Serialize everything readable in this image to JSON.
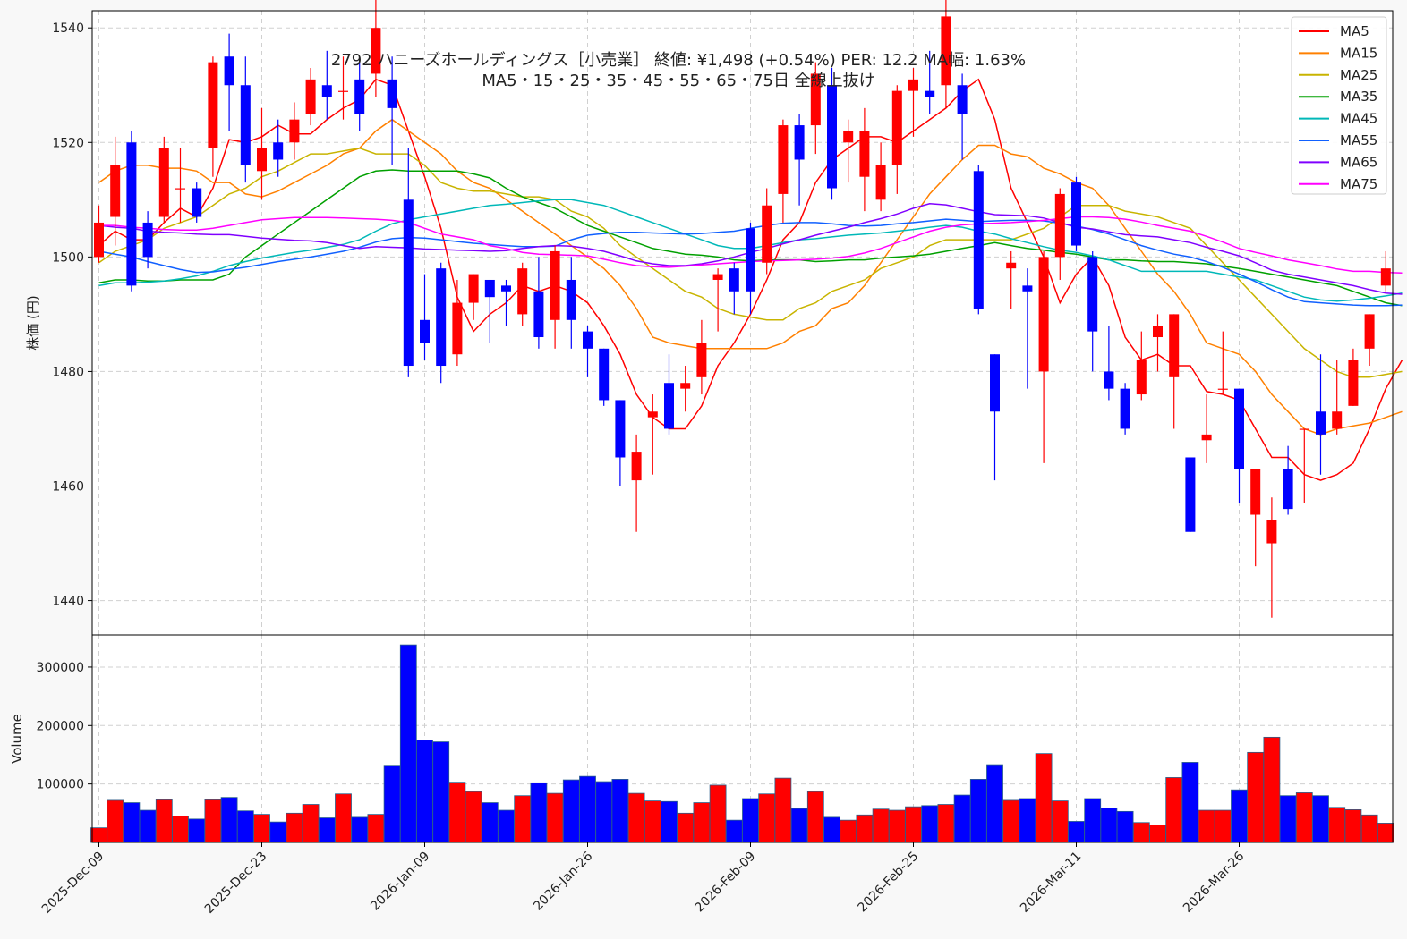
{
  "chart_data": {
    "type": "candlestick",
    "title_line1": "2792 ハニーズホールディングス［小売業］ 終値: ¥1,498 (+0.54%) PER: 12.2 MA幅: 1.63%",
    "title_line2": "MA5・15・25・35・45・55・65・75日 全線上抜け",
    "ylabel": "株価 (円)",
    "volume_label": "Volume",
    "ylim": [
      1434,
      1543
    ],
    "yticks": [
      1440,
      1460,
      1480,
      1500,
      1520,
      1540
    ],
    "volume_ylim": [
      0,
      355000
    ],
    "volume_ticks": [
      100000,
      200000,
      300000
    ],
    "legend_position": "top-right",
    "grid": true,
    "date_labels": [
      {
        "index": 0,
        "label": "2025-Dec-09"
      },
      {
        "index": 10,
        "label": "2025-Dec-23"
      },
      {
        "index": 20,
        "label": "2026-Jan-09"
      },
      {
        "index": 30,
        "label": "2026-Jan-26"
      },
      {
        "index": 40,
        "label": "2026-Feb-09"
      },
      {
        "index": 50,
        "label": "2026-Feb-25"
      },
      {
        "index": 60,
        "label": "2026-Mar-11"
      },
      {
        "index": 70,
        "label": "2026-Mar-26"
      }
    ],
    "candles": [
      [
        1500,
        1506,
        1499,
        1509,
        25000
      ],
      [
        1507,
        1516,
        1502,
        1521,
        72000
      ],
      [
        1520,
        1495,
        1494,
        1522,
        68000
      ],
      [
        1506,
        1500,
        1498,
        1508,
        55000
      ],
      [
        1507,
        1519,
        1506,
        1521,
        73000
      ],
      [
        1512,
        1512,
        1506,
        1519,
        45000
      ],
      [
        1512,
        1507,
        1506,
        1513,
        40000
      ],
      [
        1519,
        1534,
        1514,
        1535,
        73000
      ],
      [
        1535,
        1530,
        1522,
        1539,
        77000
      ],
      [
        1530,
        1516,
        1513,
        1535,
        54000
      ],
      [
        1515,
        1519,
        1510,
        1526,
        48000
      ],
      [
        1520,
        1517,
        1514,
        1524,
        35000
      ],
      [
        1520,
        1524,
        1517,
        1527,
        50000
      ],
      [
        1525,
        1531,
        1523,
        1533,
        65000
      ],
      [
        1530,
        1528,
        1524,
        1536,
        42000
      ],
      [
        1529,
        1529,
        1524,
        1535,
        83000
      ],
      [
        1531,
        1525,
        1522,
        1535,
        43000
      ],
      [
        1532,
        1540,
        1528,
        1545,
        48000
      ],
      [
        1531,
        1526,
        1516,
        1535,
        132000
      ],
      [
        1510,
        1481,
        1479,
        1519,
        338000
      ],
      [
        1489,
        1485,
        1482,
        1497,
        175000
      ],
      [
        1498,
        1481,
        1478,
        1499,
        172000
      ],
      [
        1483,
        1492,
        1481,
        1496,
        103000
      ],
      [
        1492,
        1497,
        1489,
        1497,
        87000
      ],
      [
        1496,
        1493,
        1485,
        1496,
        68000
      ],
      [
        1495,
        1494,
        1488,
        1496,
        55000
      ],
      [
        1490,
        1498,
        1488,
        1499,
        80000
      ],
      [
        1494,
        1486,
        1484,
        1500,
        102000
      ],
      [
        1489,
        1501,
        1484,
        1502,
        84000
      ],
      [
        1496,
        1489,
        1484,
        1500,
        107000
      ],
      [
        1487,
        1484,
        1479,
        1488,
        113000
      ],
      [
        1484,
        1475,
        1474,
        1484,
        104000
      ],
      [
        1475,
        1465,
        1460,
        1475,
        108000
      ],
      [
        1461,
        1466,
        1452,
        1469,
        84000
      ],
      [
        1472,
        1473,
        1462,
        1476,
        71000
      ],
      [
        1478,
        1470,
        1469,
        1483,
        70000
      ],
      [
        1477,
        1478,
        1473,
        1481,
        50000
      ],
      [
        1479,
        1485,
        1476,
        1489,
        68000
      ],
      [
        1496,
        1497,
        1487,
        1498,
        98000
      ],
      [
        1498,
        1494,
        1490,
        1499,
        38000
      ],
      [
        1505,
        1494,
        1490,
        1506,
        75000
      ],
      [
        1499,
        1509,
        1497,
        1512,
        83000
      ],
      [
        1511,
        1523,
        1506,
        1524,
        110000
      ],
      [
        1523,
        1517,
        1509,
        1525,
        58000
      ],
      [
        1523,
        1532,
        1518,
        1534,
        87000
      ],
      [
        1530,
        1512,
        1510,
        1533,
        43000
      ],
      [
        1520,
        1522,
        1513,
        1524,
        38000
      ],
      [
        1514,
        1522,
        1508,
        1526,
        47000
      ],
      [
        1510,
        1516,
        1508,
        1520,
        57000
      ],
      [
        1516,
        1529,
        1511,
        1530,
        55000
      ],
      [
        1529,
        1531,
        1521,
        1533,
        61000
      ],
      [
        1529,
        1528,
        1525,
        1536,
        63000
      ],
      [
        1530,
        1542,
        1526,
        1545,
        65000
      ],
      [
        1530,
        1525,
        1517,
        1532,
        81000
      ],
      [
        1515,
        1491,
        1490,
        1516,
        108000
      ],
      [
        1483,
        1473,
        1461,
        1483,
        133000
      ],
      [
        1498,
        1499,
        1491,
        1501,
        72000
      ],
      [
        1495,
        1494,
        1477,
        1498,
        75000
      ],
      [
        1480,
        1500,
        1464,
        1501,
        152000
      ],
      [
        1500,
        1511,
        1496,
        1512,
        71000
      ],
      [
        1513,
        1502,
        1501,
        1514,
        36000
      ],
      [
        1500,
        1487,
        1480,
        1501,
        75000
      ],
      [
        1480,
        1477,
        1475,
        1488,
        59000
      ],
      [
        1477,
        1470,
        1469,
        1478,
        53000
      ],
      [
        1476,
        1482,
        1475,
        1487,
        34000
      ],
      [
        1486,
        1488,
        1480,
        1490,
        30000
      ],
      [
        1479,
        1490,
        1470,
        1490,
        111000
      ],
      [
        1465,
        1452,
        1452,
        1465,
        137000
      ],
      [
        1468,
        1469,
        1464,
        1476,
        55000
      ],
      [
        1477,
        1477,
        1476,
        1487,
        55000
      ],
      [
        1477,
        1463,
        1457,
        1477,
        90000
      ],
      [
        1455,
        1463,
        1446,
        1463,
        154000
      ],
      [
        1450,
        1454,
        1437,
        1458,
        180000
      ],
      [
        1463,
        1456,
        1455,
        1467,
        80000
      ],
      [
        1470,
        1470,
        1457,
        1470,
        85000
      ],
      [
        1473,
        1469,
        1462,
        1483,
        80000
      ],
      [
        1470,
        1473,
        1469,
        1482,
        60000
      ],
      [
        1474,
        1482,
        1474,
        1484,
        56000
      ],
      [
        1484,
        1490,
        1481,
        1490,
        47000
      ],
      [
        1495,
        1498,
        1494,
        1501,
        33000
      ]
    ],
    "series": [
      {
        "name": "MA5",
        "color": "#ff0000",
        "values": [
          1502,
          1504.5,
          1503,
          1503,
          1506,
          1508.5,
          1507,
          1512,
          1520.5,
          1520,
          1521,
          1523,
          1521.5,
          1521.5,
          1524,
          1526,
          1527.5,
          1531,
          1530,
          1522,
          1514,
          1505,
          1493,
          1487,
          1490,
          1492,
          1495,
          1494,
          1495,
          1494,
          1492,
          1488,
          1483,
          1476,
          1472,
          1470,
          1470,
          1474,
          1481,
          1485,
          1490,
          1496,
          1503,
          1506,
          1513,
          1517,
          1519,
          1521,
          1521,
          1520,
          1522,
          1524,
          1526,
          1529,
          1531,
          1524,
          1512,
          1506,
          1500,
          1492,
          1497,
          1500,
          1495,
          1486,
          1482,
          1483,
          1481,
          1481,
          1476.5,
          1476,
          1475,
          1470,
          1465,
          1465,
          1462,
          1461,
          1462,
          1464,
          1470,
          1477,
          1482
        ]
      },
      {
        "name": "MA15",
        "color": "#ff8000",
        "values": [
          1513,
          1515,
          1516,
          1516,
          1515.5,
          1515.5,
          1515,
          1513,
          1513,
          1511,
          1510.5,
          1511.5,
          1513,
          1514.5,
          1516,
          1518,
          1519,
          1522,
          1524,
          1522,
          1520,
          1518,
          1515,
          1513,
          1512,
          1510,
          1508,
          1506,
          1504,
          1502,
          1500,
          1498,
          1495,
          1491,
          1486,
          1485,
          1484.5,
          1484,
          1484,
          1484,
          1484,
          1484,
          1485,
          1487,
          1488,
          1491,
          1492,
          1495,
          1499,
          1503,
          1507,
          1511,
          1514,
          1517,
          1519.5,
          1519.5,
          1518,
          1517.5,
          1515.5,
          1514.5,
          1513,
          1512,
          1509,
          1505,
          1501,
          1497,
          1494,
          1490,
          1485,
          1484,
          1483,
          1480,
          1476,
          1473,
          1470,
          1469,
          1470,
          1470.5,
          1471,
          1472,
          1473
        ]
      },
      {
        "name": "MA25",
        "color": "#c8b400",
        "values": [
          1499,
          1501,
          1502,
          1503,
          1505,
          1506,
          1507,
          1509,
          1511,
          1512,
          1514,
          1515,
          1516.5,
          1518,
          1518,
          1518.5,
          1519,
          1518,
          1518,
          1518,
          1516,
          1513,
          1512,
          1511.5,
          1511.5,
          1511,
          1510.5,
          1510.5,
          1510,
          1508,
          1507,
          1505,
          1502,
          1500,
          1498,
          1496,
          1494,
          1493,
          1491,
          1490,
          1489.5,
          1489,
          1489,
          1491,
          1492,
          1494,
          1495,
          1496,
          1498,
          1499,
          1500,
          1502,
          1503,
          1503,
          1503,
          1503,
          1503,
          1504,
          1505,
          1507,
          1509,
          1509,
          1509,
          1508,
          1507.5,
          1507,
          1506,
          1505,
          1502,
          1499,
          1496,
          1493,
          1490,
          1487,
          1484,
          1482,
          1480,
          1479,
          1479,
          1479.5,
          1480
        ]
      },
      {
        "name": "MA35",
        "color": "#00a000",
        "values": [
          1495.5,
          1496,
          1496,
          1495.8,
          1495.8,
          1496,
          1496,
          1496,
          1497,
          1500,
          1502,
          1504,
          1506,
          1508,
          1510,
          1512,
          1514,
          1515,
          1515.2,
          1515,
          1515,
          1515,
          1515,
          1514.5,
          1513.8,
          1512,
          1510.5,
          1509.5,
          1508.5,
          1507,
          1505.5,
          1504.5,
          1503.5,
          1502.5,
          1501.5,
          1501,
          1500.5,
          1500.3,
          1500,
          1499.5,
          1499.3,
          1499.5,
          1499.5,
          1499.5,
          1499.2,
          1499.3,
          1499.5,
          1499.5,
          1499.8,
          1500,
          1500.2,
          1500.5,
          1501,
          1501.5,
          1502,
          1502.5,
          1502,
          1501.5,
          1501.2,
          1500.8,
          1500.5,
          1500,
          1499.5,
          1499.5,
          1499.3,
          1499.2,
          1499.2,
          1499,
          1498.8,
          1498.4,
          1498,
          1497.5,
          1497,
          1496.5,
          1496,
          1495.5,
          1495,
          1494,
          1493,
          1492,
          1491.5
        ]
      },
      {
        "name": "MA45",
        "color": "#00b8b8",
        "values": [
          1495,
          1495.5,
          1495.5,
          1495.6,
          1495.8,
          1496.2,
          1496.7,
          1497.5,
          1498.5,
          1499.2,
          1499.8,
          1500.3,
          1500.8,
          1501.2,
          1501.7,
          1502.2,
          1503,
          1504.5,
          1505.8,
          1506.5,
          1507,
          1507.5,
          1508,
          1508.5,
          1509,
          1509.2,
          1509.5,
          1509.8,
          1510,
          1510,
          1509.5,
          1509,
          1508,
          1507,
          1506,
          1505,
          1504,
          1503,
          1502,
          1501.5,
          1501.5,
          1502,
          1502.5,
          1503,
          1503.2,
          1503.5,
          1503.8,
          1504,
          1504.2,
          1504.5,
          1504.8,
          1505.2,
          1505.5,
          1505.2,
          1504.5,
          1504,
          1503.2,
          1502.5,
          1501.8,
          1501.2,
          1500.8,
          1500.2,
          1499.5,
          1498.5,
          1497.5,
          1497.5,
          1497.5,
          1497.5,
          1497.5,
          1497,
          1496.5,
          1496,
          1495,
          1494,
          1493,
          1492.5,
          1492.3,
          1492.5,
          1492.8,
          1493.2,
          1493.7
        ]
      },
      {
        "name": "MA55",
        "color": "#1060ff",
        "values": [
          1501,
          1500.5,
          1500,
          1499.2,
          1498.5,
          1497.8,
          1497.3,
          1497.4,
          1497.8,
          1498.2,
          1498.7,
          1499.2,
          1499.6,
          1500,
          1500.5,
          1501,
          1501.7,
          1502.6,
          1503.2,
          1503.4,
          1503.3,
          1503,
          1502.7,
          1502.4,
          1502.2,
          1502,
          1501.8,
          1501.8,
          1501.9,
          1503,
          1503.8,
          1504.1,
          1504.3,
          1504.3,
          1504.2,
          1504.1,
          1504,
          1504.1,
          1504.3,
          1504.5,
          1505,
          1505.5,
          1505.9,
          1506,
          1506,
          1505.8,
          1505.5,
          1505.4,
          1505.5,
          1505.8,
          1506,
          1506.3,
          1506.6,
          1506.4,
          1506.2,
          1506.3,
          1506.4,
          1506.4,
          1506.3,
          1505.9,
          1505.4,
          1504.8,
          1504,
          1503,
          1502,
          1501.2,
          1500.5,
          1500,
          1499.2,
          1498.2,
          1497,
          1495.7,
          1494.3,
          1493,
          1492.2,
          1492,
          1491.8,
          1491.6,
          1491.5,
          1491.5,
          1491.6
        ]
      },
      {
        "name": "MA65",
        "color": "#8000ff",
        "values": [
          1505.5,
          1505.2,
          1505,
          1504.5,
          1504.3,
          1504.2,
          1504,
          1503.9,
          1503.9,
          1503.6,
          1503.3,
          1503.1,
          1502.9,
          1502.8,
          1502.5,
          1502,
          1501.5,
          1501.8,
          1501.7,
          1501.6,
          1501.4,
          1501.3,
          1501.2,
          1501.1,
          1501,
          1501.1,
          1501.5,
          1501.8,
          1502,
          1501.9,
          1501.5,
          1501,
          1500.2,
          1499.3,
          1498.8,
          1498.5,
          1498.5,
          1498.8,
          1499.3,
          1500,
          1500.8,
          1501.5,
          1502.3,
          1503,
          1503.8,
          1504.5,
          1505.2,
          1506,
          1506.7,
          1507.5,
          1508.5,
          1509.3,
          1509.1,
          1508.5,
          1507.9,
          1507.4,
          1507.3,
          1507.2,
          1506.8,
          1506,
          1505.2,
          1504.9,
          1504.4,
          1503.9,
          1503.7,
          1503.5,
          1503,
          1502.5,
          1501.7,
          1501,
          1500.2,
          1499,
          1497.7,
          1497,
          1496.5,
          1496,
          1495.5,
          1495,
          1494.3,
          1493.7,
          1493.5
        ]
      },
      {
        "name": "MA75",
        "color": "#ff00ff",
        "values": [
          1505.5,
          1505.5,
          1505.2,
          1505,
          1504.8,
          1504.7,
          1504.7,
          1505,
          1505.5,
          1506,
          1506.5,
          1506.7,
          1506.9,
          1506.9,
          1506.9,
          1506.8,
          1506.7,
          1506.6,
          1506.4,
          1506,
          1505,
          1504,
          1503.5,
          1503,
          1502,
          1501.5,
          1500.8,
          1500.5,
          1500.4,
          1500.3,
          1500.2,
          1499.6,
          1499,
          1498.5,
          1498.3,
          1498.2,
          1498.4,
          1498.6,
          1498.8,
          1499,
          1499.2,
          1499.3,
          1499.4,
          1499.5,
          1499.6,
          1499.8,
          1500.1,
          1500.7,
          1501.5,
          1502.5,
          1503.5,
          1504.5,
          1505.2,
          1505.6,
          1505.8,
          1505.9,
          1506,
          1506.2,
          1506.4,
          1506.7,
          1507,
          1507,
          1506.9,
          1506.6,
          1506.1,
          1505.5,
          1505,
          1504.5,
          1503.6,
          1502.6,
          1501.5,
          1500.8,
          1500.2,
          1499.5,
          1499,
          1498.5,
          1497.9,
          1497.5,
          1497.5,
          1497.3,
          1497.2
        ]
      }
    ]
  }
}
